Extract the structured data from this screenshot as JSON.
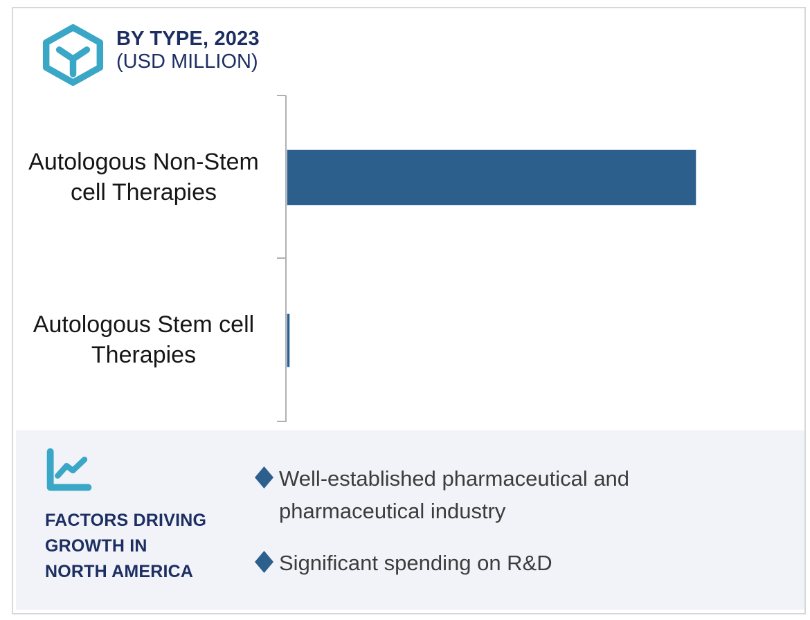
{
  "colors": {
    "accent_teal": "#3aa7c7",
    "navy": "#1c2e62",
    "bar_blue": "#2d5f8d",
    "panel_background": "#f1f3f8",
    "axis_gray": "#b0b0b0",
    "body_text": "#3c3c3c",
    "frame_border": "#d8d8d8"
  },
  "header": {
    "icon": "hex-cube-icon",
    "title_line1": "BY TYPE, 2023",
    "title_line2": "(USD MILLION)"
  },
  "chart_data": {
    "type": "bar",
    "orientation": "horizontal",
    "title": "BY TYPE, 2023 (USD MILLION)",
    "categories": [
      "Autologous Non-Stem cell Therapies",
      "Autologous Stem cell Therapies"
    ],
    "values": [
      100,
      0.8
    ],
    "xlim": [
      0,
      126
    ],
    "xlabel": "",
    "ylabel": "",
    "grid": false,
    "legend": false,
    "value_labels_visible": false,
    "axis_tick_labels_visible": false,
    "bar_color": "#2d5f8d",
    "note": "No numeric axis or data labels are shown in the image; values are relative bar-length estimates (longest bar = 100)."
  },
  "factors_panel": {
    "icon": "line-chart-icon",
    "heading": "FACTORS DRIVING\nGROWTH IN\nNORTH AMERICA",
    "bullet_icon": "diamond-bullet-icon",
    "bullets": [
      "Well-established pharmaceutical and\npharmaceutical industry",
      "Significant spending on R&D"
    ]
  }
}
